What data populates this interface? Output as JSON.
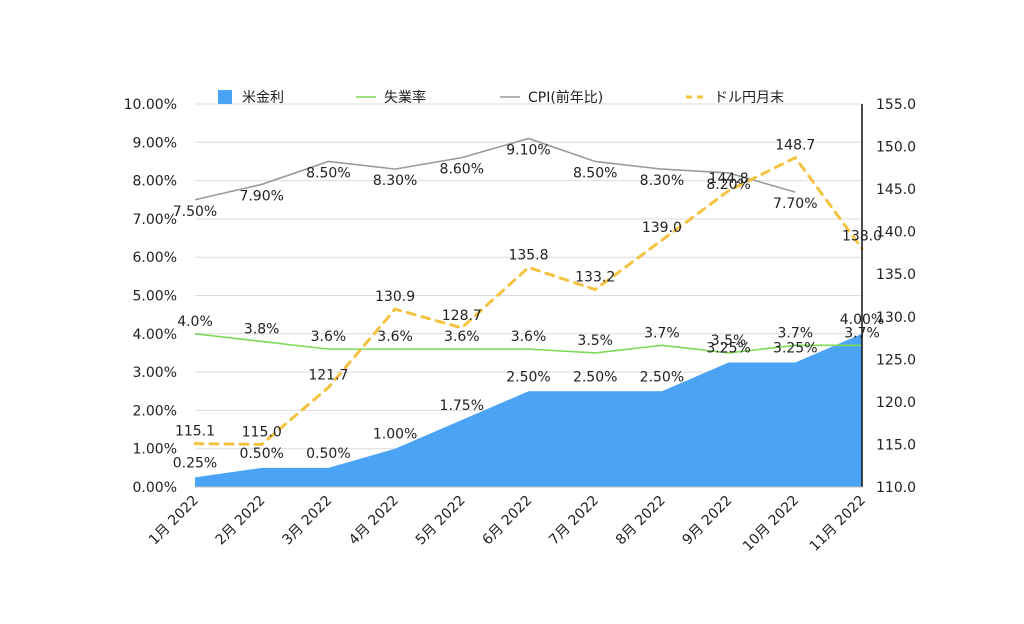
{
  "chart_data": {
    "type": "combo",
    "categories": [
      "1月 2022",
      "2月 2022",
      "3月 2022",
      "4月 2022",
      "5月 2022",
      "6月 2022",
      "7月 2022",
      "8月 2022",
      "9月 2022",
      "10月 2022",
      "11月 2022"
    ],
    "y_left": {
      "ticks": [
        "0.00%",
        "1.00%",
        "2.00%",
        "3.00%",
        "4.00%",
        "5.00%",
        "6.00%",
        "7.00%",
        "8.00%",
        "9.00%",
        "10.00%"
      ],
      "min": 0,
      "max": 10
    },
    "y_right": {
      "ticks": [
        "110.0",
        "115.0",
        "120.0",
        "125.0",
        "130.0",
        "135.0",
        "140.0",
        "145.0",
        "150.0",
        "155.0"
      ],
      "min": 110,
      "max": 155
    },
    "legend_position": "top",
    "series": [
      {
        "name": "米金利",
        "kind": "area",
        "axis": "left",
        "color": "#4aa3f5",
        "values": [
          0.25,
          0.5,
          0.5,
          1.0,
          1.75,
          2.5,
          2.5,
          2.5,
          3.25,
          3.25,
          4.0
        ],
        "labels": [
          "0.25%",
          "0.50%",
          "0.50%",
          "1.00%",
          "1.75%",
          "2.50%",
          "2.50%",
          "2.50%",
          "3.25%",
          "3.25%",
          "4.00%"
        ]
      },
      {
        "name": "失業率",
        "kind": "line",
        "axis": "left",
        "color": "#7ed957",
        "values": [
          4.0,
          3.8,
          3.6,
          3.6,
          3.6,
          3.6,
          3.5,
          3.7,
          3.5,
          3.7,
          3.7
        ],
        "labels": [
          "4.0%",
          "3.8%",
          "3.6%",
          "3.6%",
          "3.6%",
          "3.6%",
          "3.5%",
          "3.7%",
          "3.5%",
          "3.7%",
          "3.7%"
        ]
      },
      {
        "name": "CPI(前年比)",
        "kind": "line",
        "axis": "left",
        "color": "#9a9a9a",
        "values": [
          7.5,
          7.9,
          8.5,
          8.3,
          8.6,
          9.1,
          8.5,
          8.3,
          8.2,
          7.7,
          null
        ],
        "labels": [
          "7.50%",
          "7.90%",
          "8.50%",
          "8.30%",
          "8.60%",
          "9.10%",
          "8.50%",
          "8.30%",
          "8.20%",
          "7.70%",
          null
        ]
      },
      {
        "name": "ドル円月末",
        "kind": "dashed-line",
        "axis": "right",
        "color": "#f5c242",
        "values": [
          115.1,
          115.0,
          121.7,
          130.9,
          128.7,
          135.8,
          133.2,
          139.0,
          144.8,
          148.7,
          138.0
        ],
        "labels": [
          "115.1",
          "115.0",
          "121.7",
          "130.9",
          "128.7",
          "135.8",
          "133.2",
          "139.0",
          "144.8",
          "148.7",
          "138.0"
        ]
      }
    ]
  }
}
